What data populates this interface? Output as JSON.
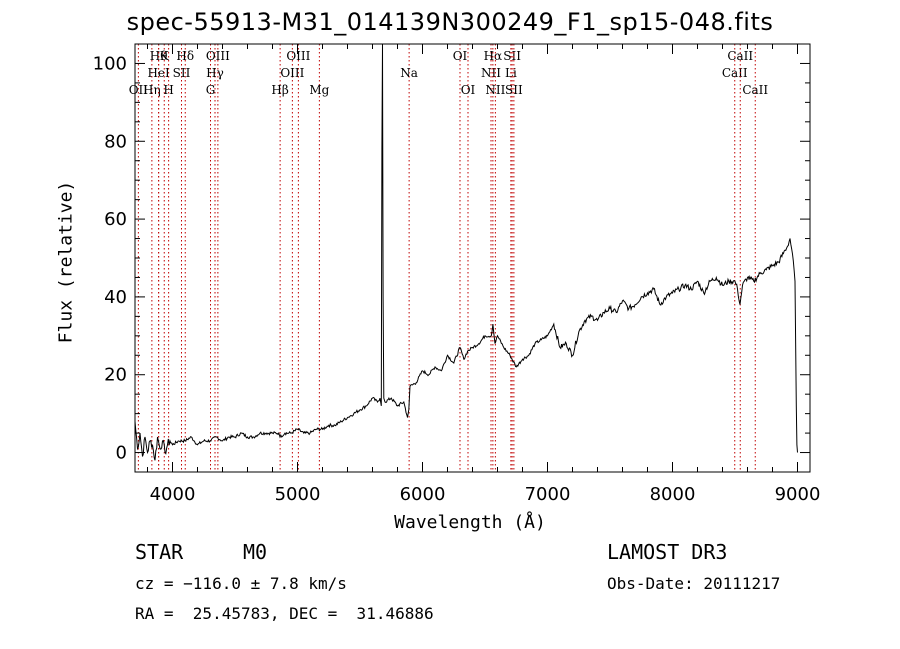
{
  "chart_data": {
    "type": "line",
    "title": "spec-55913-M31_014139N300249_F1_sp15-048.fits",
    "xlabel": "Wavelength (Å)",
    "ylabel": "Flux (relative)",
    "xlim": [
      3700,
      9100
    ],
    "ylim": [
      -5,
      105
    ],
    "xticks": [
      4000,
      5000,
      6000,
      7000,
      8000,
      9000
    ],
    "yticks": [
      0,
      20,
      40,
      60,
      80,
      100
    ],
    "series": [
      {
        "name": "spectrum",
        "x": [
          3700,
          3720,
          3740,
          3760,
          3780,
          3800,
          3820,
          3840,
          3860,
          3880,
          3900,
          3920,
          3940,
          3960,
          3980,
          4000,
          4050,
          4100,
          4150,
          4200,
          4250,
          4300,
          4350,
          4400,
          4450,
          4500,
          4550,
          4600,
          4650,
          4700,
          4750,
          4800,
          4850,
          4860,
          4900,
          4950,
          5000,
          5050,
          5100,
          5150,
          5200,
          5250,
          5300,
          5350,
          5400,
          5450,
          5500,
          5550,
          5600,
          5640,
          5660,
          5670,
          5675,
          5680,
          5685,
          5690,
          5700,
          5750,
          5800,
          5850,
          5880,
          5890,
          5900,
          5950,
          6000,
          6050,
          6100,
          6150,
          6200,
          6250,
          6300,
          6330,
          6360,
          6400,
          6450,
          6500,
          6550,
          6563,
          6580,
          6600,
          6650,
          6700,
          6750,
          6800,
          6850,
          6900,
          6950,
          7000,
          7050,
          7100,
          7150,
          7200,
          7250,
          7300,
          7350,
          7400,
          7450,
          7500,
          7550,
          7600,
          7650,
          7700,
          7750,
          7800,
          7850,
          7900,
          7950,
          8000,
          8050,
          8100,
          8150,
          8200,
          8250,
          8300,
          8350,
          8400,
          8450,
          8500,
          8520,
          8540,
          8560,
          8600,
          8650,
          8700,
          8750,
          8800,
          8850,
          8900,
          8920,
          8940,
          8960,
          8980,
          8990,
          8995,
          9000
        ],
        "y": [
          8,
          1,
          5,
          -1,
          4,
          0,
          3,
          2,
          -2,
          4,
          1,
          3,
          0,
          2,
          3,
          2,
          3,
          3,
          4,
          2,
          3,
          3,
          4,
          3,
          4,
          4,
          5,
          4,
          4,
          5,
          5,
          5,
          5,
          4,
          5,
          5,
          6,
          5,
          5,
          6,
          6,
          7,
          7,
          8,
          9,
          10,
          11,
          12,
          14,
          13,
          14,
          12,
          78,
          105,
          40,
          14,
          13,
          14,
          12,
          13,
          9,
          11,
          17,
          18,
          21,
          20,
          22,
          21,
          25,
          23,
          27,
          24,
          26,
          27,
          28,
          30,
          30,
          33,
          28,
          30,
          27,
          25,
          22,
          24,
          25,
          28,
          29,
          30,
          33,
          27,
          28,
          25,
          31,
          34,
          35,
          34,
          36,
          37,
          36,
          39,
          37,
          38,
          40,
          41,
          42,
          38,
          40,
          41,
          42,
          43,
          42,
          44,
          41,
          44,
          45,
          43,
          44,
          44,
          42,
          38,
          43,
          45,
          44,
          46,
          47,
          48,
          49,
          52,
          53,
          55,
          51,
          44,
          12,
          2,
          0
        ]
      }
    ],
    "line_markers": [
      {
        "x": 3727,
        "label": "OII",
        "row": 2
      },
      {
        "x": 3835,
        "label": "Hη",
        "row": 2
      },
      {
        "x": 3889,
        "label": "Hθ",
        "row": 0
      },
      {
        "x": 3889,
        "label": "HeI",
        "row": 1
      },
      {
        "x": 3934,
        "label": "K",
        "row": 0
      },
      {
        "x": 3969,
        "label": "H",
        "row": 2
      },
      {
        "x": 4072,
        "label": "SII",
        "row": 1
      },
      {
        "x": 4102,
        "label": "Hδ",
        "row": 0
      },
      {
        "x": 4304,
        "label": "G",
        "row": 2
      },
      {
        "x": 4340,
        "label": "Hγ",
        "row": 1
      },
      {
        "x": 4363,
        "label": "OIII",
        "row": 0
      },
      {
        "x": 4861,
        "label": "Hβ",
        "row": 2
      },
      {
        "x": 4959,
        "label": "OIII",
        "row": 1
      },
      {
        "x": 5007,
        "label": "OIII",
        "row": 0
      },
      {
        "x": 5175,
        "label": "Mg",
        "row": 2
      },
      {
        "x": 5893,
        "label": "Na",
        "row": 1
      },
      {
        "x": 6300,
        "label": "OI",
        "row": 0
      },
      {
        "x": 6364,
        "label": "OI",
        "row": 2
      },
      {
        "x": 6548,
        "label": "NII",
        "row": 1
      },
      {
        "x": 6563,
        "label": "Hα",
        "row": 0
      },
      {
        "x": 6583,
        "label": "NII",
        "row": 2
      },
      {
        "x": 6707,
        "label": "Li",
        "row": 1
      },
      {
        "x": 6717,
        "label": "SII",
        "row": 0
      },
      {
        "x": 6731,
        "label": "SII",
        "row": 2
      },
      {
        "x": 8498,
        "label": "CaII",
        "row": 1
      },
      {
        "x": 8542,
        "label": "CaII",
        "row": 0
      },
      {
        "x": 8662,
        "label": "CaII",
        "row": 2
      }
    ]
  },
  "info": {
    "class": "STAR",
    "subclass": "M0",
    "cz": "cz = −116.0 ± 7.8 km/s",
    "coords": "RA =  25.45783, DEC =  31.46886",
    "survey": "LAMOST DR3",
    "obs_date": "Obs-Date: 20111217"
  }
}
